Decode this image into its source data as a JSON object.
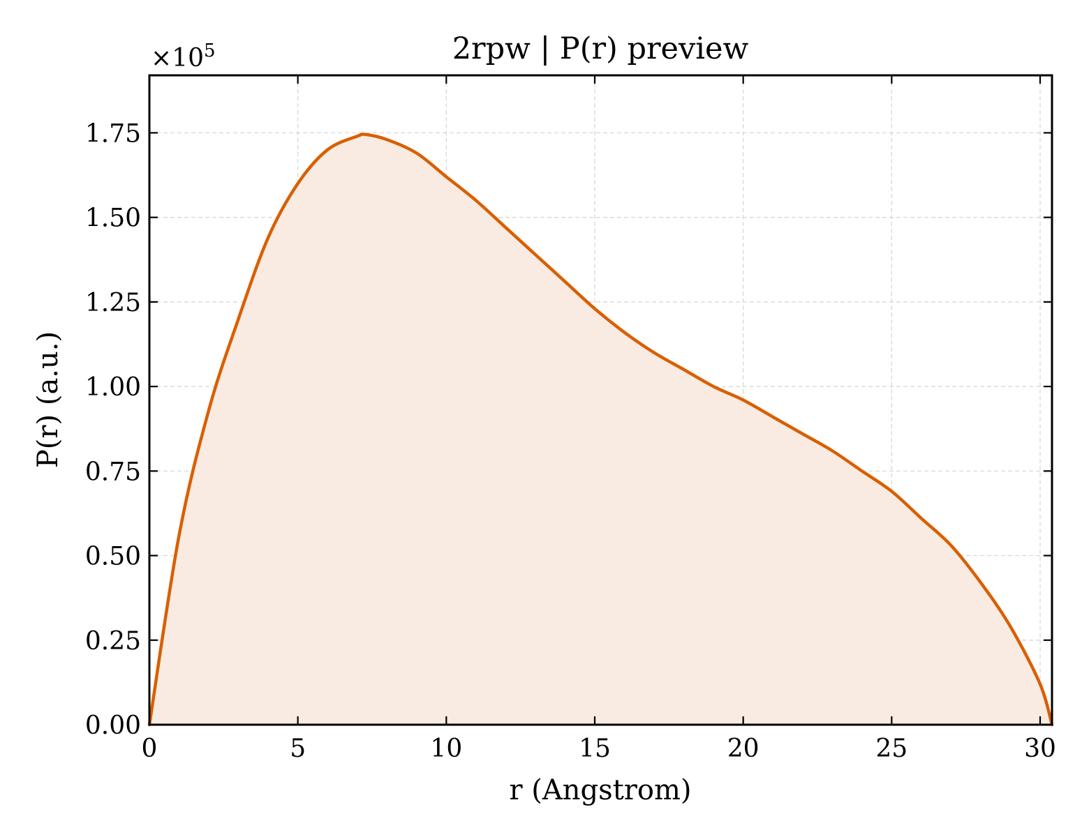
{
  "chart_data": {
    "type": "area",
    "title": "2rpw | P(r) preview",
    "xlabel": "r (Angstrom)",
    "ylabel": "P(r) (a.u.)",
    "y_multiplier_label": "×10",
    "y_multiplier_exponent": "5",
    "xlim": [
      0,
      30.4
    ],
    "ylim": [
      0,
      1.92
    ],
    "grid": true,
    "x_ticks": [
      0,
      5,
      10,
      15,
      20,
      25,
      30
    ],
    "x_tick_labels": [
      "0",
      "5",
      "10",
      "15",
      "20",
      "25",
      "30"
    ],
    "y_ticks": [
      0,
      0.25,
      0.5,
      0.75,
      1.0,
      1.25,
      1.5,
      1.75
    ],
    "y_tick_labels": [
      "0.00",
      "0.25",
      "0.50",
      "0.75",
      "1.00",
      "1.25",
      "1.50",
      "1.75"
    ],
    "line_color": "#d95f02",
    "fill_color": "#f9ebe1",
    "series": [
      {
        "x": [
          0,
          1,
          2,
          3,
          4,
          5,
          6,
          7,
          7.3,
          8,
          9,
          10,
          11,
          12,
          13,
          14,
          15,
          16,
          17,
          18,
          19,
          20,
          21,
          22,
          23,
          24,
          25,
          26,
          27,
          28,
          29,
          30,
          30.4
        ],
        "values": [
          0,
          0.56,
          0.93,
          1.2,
          1.44,
          1.6,
          1.7,
          1.74,
          1.745,
          1.73,
          1.69,
          1.62,
          1.55,
          1.47,
          1.39,
          1.31,
          1.23,
          1.16,
          1.1,
          1.05,
          1.0,
          0.96,
          0.91,
          0.86,
          0.81,
          0.75,
          0.69,
          0.61,
          0.53,
          0.42,
          0.29,
          0.12,
          0
        ]
      }
    ]
  }
}
